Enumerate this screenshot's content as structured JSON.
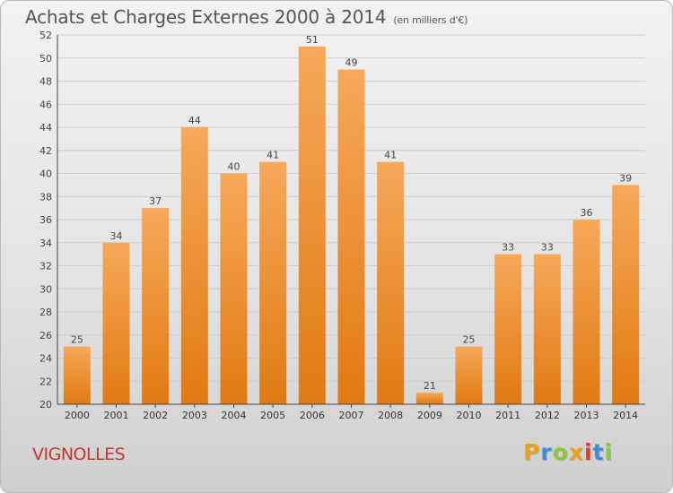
{
  "header": {
    "title": "Achats et Charges Externes 2000 à 2014",
    "subtitle": "(en milliers d'€)"
  },
  "footer": {
    "place": "VIGNOLLES",
    "logo_text": "Proxiti",
    "logo_colors": [
      "#e8a21b",
      "#3b8fd6",
      "#8dc63f",
      "#e8a21b",
      "#e23b2e",
      "#3b8fd6",
      "#8dc63f"
    ]
  },
  "colors": {
    "bar_top": "#f7a85a",
    "bar_bottom": "#e07a12",
    "grid": "#cccccc",
    "axis": "#444444",
    "place": "#c0392b"
  },
  "chart_data": {
    "type": "bar",
    "title": "Achats et Charges Externes 2000 à 2014",
    "subtitle": "(en milliers d'€)",
    "categories": [
      "2000",
      "2001",
      "2002",
      "2003",
      "2004",
      "2005",
      "2006",
      "2007",
      "2008",
      "2009",
      "2010",
      "2011",
      "2012",
      "2013",
      "2014"
    ],
    "values": [
      25,
      34,
      37,
      44,
      40,
      41,
      51,
      49,
      41,
      21,
      25,
      33,
      33,
      36,
      39
    ],
    "ylim": [
      20,
      52
    ],
    "yticks": [
      20,
      22,
      24,
      26,
      28,
      30,
      32,
      34,
      36,
      38,
      40,
      42,
      44,
      46,
      48,
      50,
      52
    ],
    "grid": true,
    "legend": "none",
    "xlabel": "",
    "ylabel": ""
  }
}
